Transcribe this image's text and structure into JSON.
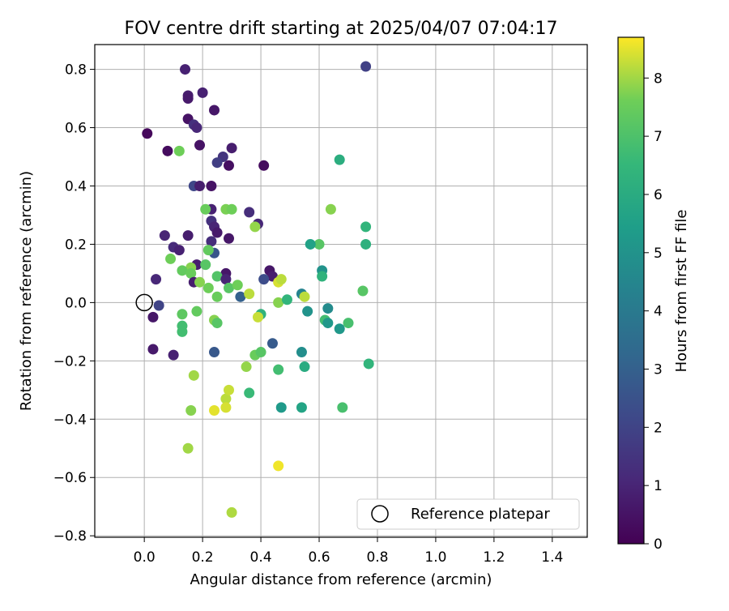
{
  "chart_data": {
    "type": "scatter",
    "title": "FOV centre drift starting at 2025/04/07 07:04:17",
    "xlabel": "Angular distance from reference (arcmin)",
    "ylabel": "Rotation from reference (arcmin)",
    "xlim": [
      -0.17,
      1.52
    ],
    "ylim": [
      -0.805,
      0.885
    ],
    "xticks": [
      0.0,
      0.2,
      0.4,
      0.6,
      0.8,
      1.0,
      1.2,
      1.4
    ],
    "xtick_labels": [
      "0.0",
      "0.2",
      "0.4",
      "0.6",
      "0.8",
      "1.0",
      "1.2",
      "1.4"
    ],
    "yticks": [
      -0.8,
      -0.6,
      -0.4,
      -0.2,
      0.0,
      0.2,
      0.4,
      0.6,
      0.8
    ],
    "ytick_labels": [
      "−0.8",
      "−0.6",
      "−0.4",
      "−0.2",
      "0.0",
      "0.2",
      "0.4",
      "0.6",
      "0.8"
    ],
    "grid": true,
    "colormap": "viridis",
    "colorbar": {
      "label": "Hours from first FF file",
      "range": [
        0,
        8.7
      ],
      "ticks": [
        0,
        1,
        2,
        3,
        4,
        5,
        6,
        7,
        8
      ],
      "tick_labels": [
        "0",
        "1",
        "2",
        "3",
        "4",
        "5",
        "6",
        "7",
        "8"
      ]
    },
    "legend": {
      "position": "lower-right",
      "entries": [
        "Reference platepar"
      ]
    },
    "reference_point": {
      "x": 0.0,
      "y": 0.0
    },
    "points": [
      [
        0.14,
        0.8,
        0.9
      ],
      [
        0.15,
        0.71,
        0.8
      ],
      [
        0.15,
        0.7,
        0.7
      ],
      [
        0.2,
        0.72,
        0.9
      ],
      [
        0.24,
        0.66,
        0.6
      ],
      [
        0.01,
        0.58,
        0.2
      ],
      [
        0.15,
        0.63,
        0.5
      ],
      [
        0.17,
        0.61,
        1.4
      ],
      [
        0.18,
        0.6,
        1.1
      ],
      [
        0.19,
        0.54,
        0.5
      ],
      [
        0.08,
        0.52,
        0.3
      ],
      [
        0.12,
        0.52,
        7.6
      ],
      [
        0.27,
        0.5,
        1.5
      ],
      [
        0.25,
        0.48,
        1.8
      ],
      [
        0.3,
        0.53,
        0.8
      ],
      [
        0.29,
        0.47,
        0.4
      ],
      [
        0.41,
        0.47,
        0.3
      ],
      [
        0.17,
        0.4,
        2.1
      ],
      [
        0.19,
        0.4,
        0.8
      ],
      [
        0.23,
        0.4,
        0.5
      ],
      [
        0.23,
        0.32,
        0.9
      ],
      [
        0.23,
        0.28,
        1.4
      ],
      [
        0.21,
        0.32,
        7.5
      ],
      [
        0.28,
        0.32,
        7.7
      ],
      [
        0.3,
        0.32,
        7.6
      ],
      [
        0.36,
        0.31,
        1.3
      ],
      [
        0.39,
        0.27,
        1.1
      ],
      [
        0.38,
        0.26,
        7.9
      ],
      [
        0.24,
        0.26,
        1.0
      ],
      [
        0.23,
        0.21,
        1.3
      ],
      [
        0.25,
        0.24,
        0.7
      ],
      [
        0.29,
        0.22,
        0.6
      ],
      [
        0.07,
        0.23,
        1.0
      ],
      [
        0.15,
        0.23,
        0.8
      ],
      [
        0.1,
        0.19,
        1.2
      ],
      [
        0.12,
        0.18,
        0.9
      ],
      [
        0.09,
        0.15,
        7.6
      ],
      [
        0.24,
        0.17,
        2.6
      ],
      [
        0.22,
        0.18,
        7.4
      ],
      [
        0.18,
        0.13,
        0.8
      ],
      [
        0.21,
        0.13,
        7.2
      ],
      [
        0.16,
        0.12,
        7.8
      ],
      [
        0.13,
        0.11,
        7.4
      ],
      [
        0.16,
        0.1,
        7.5
      ],
      [
        0.28,
        0.1,
        0.6
      ],
      [
        0.04,
        0.08,
        1.1
      ],
      [
        0.17,
        0.07,
        0.8
      ],
      [
        0.19,
        0.07,
        7.8
      ],
      [
        0.25,
        0.09,
        7.1
      ],
      [
        0.28,
        0.08,
        1.0
      ],
      [
        0.22,
        0.05,
        7.6
      ],
      [
        0.29,
        0.05,
        7.2
      ],
      [
        0.32,
        0.06,
        7.6
      ],
      [
        0.33,
        0.02,
        3.0
      ],
      [
        0.36,
        0.03,
        8.2
      ],
      [
        0.43,
        0.11,
        0.6
      ],
      [
        0.44,
        0.09,
        0.8
      ],
      [
        0.41,
        0.08,
        2.3
      ],
      [
        0.46,
        0.07,
        8.4
      ],
      [
        0.47,
        0.08,
        8.2
      ],
      [
        0.25,
        0.02,
        7.5
      ],
      [
        0.05,
        -0.01,
        2.0
      ],
      [
        0.03,
        -0.05,
        0.6
      ],
      [
        0.13,
        -0.04,
        7.3
      ],
      [
        0.13,
        -0.08,
        6.8
      ],
      [
        0.18,
        -0.03,
        7.4
      ],
      [
        0.24,
        -0.06,
        7.8
      ],
      [
        0.25,
        -0.07,
        7.2
      ],
      [
        0.13,
        -0.1,
        6.8
      ],
      [
        0.03,
        -0.16,
        0.7
      ],
      [
        0.1,
        -0.18,
        0.9
      ],
      [
        0.24,
        -0.17,
        2.7
      ],
      [
        0.38,
        -0.18,
        7.5
      ],
      [
        0.4,
        -0.17,
        7.2
      ],
      [
        0.44,
        -0.14,
        2.8
      ],
      [
        0.4,
        -0.04,
        6.3
      ],
      [
        0.39,
        -0.05,
        8.3
      ],
      [
        0.46,
        0.0,
        7.8
      ],
      [
        0.49,
        0.01,
        6.4
      ],
      [
        0.54,
        0.03,
        4.4
      ],
      [
        0.55,
        0.02,
        8.2
      ],
      [
        0.56,
        -0.03,
        5.0
      ],
      [
        0.61,
        0.11,
        5.0
      ],
      [
        0.61,
        0.09,
        6.3
      ],
      [
        0.6,
        0.2,
        7.2
      ],
      [
        0.57,
        0.2,
        5.6
      ],
      [
        0.63,
        -0.02,
        4.7
      ],
      [
        0.62,
        -0.06,
        6.8
      ],
      [
        0.63,
        -0.07,
        5.2
      ],
      [
        0.67,
        -0.09,
        5.2
      ],
      [
        0.7,
        -0.07,
        6.9
      ],
      [
        0.64,
        0.32,
        7.8
      ],
      [
        0.67,
        0.49,
        6.1
      ],
      [
        0.75,
        0.04,
        7.2
      ],
      [
        0.76,
        0.26,
        6.4
      ],
      [
        0.76,
        0.2,
        6.2
      ],
      [
        0.77,
        -0.21,
        6.4
      ],
      [
        0.35,
        -0.22,
        7.9
      ],
      [
        0.46,
        -0.23,
        6.8
      ],
      [
        0.55,
        -0.22,
        6.0
      ],
      [
        0.54,
        -0.17,
        4.8
      ],
      [
        0.36,
        -0.31,
        6.6
      ],
      [
        0.47,
        -0.36,
        5.3
      ],
      [
        0.54,
        -0.36,
        5.7
      ],
      [
        0.68,
        -0.36,
        6.9
      ],
      [
        0.17,
        -0.25,
        8.0
      ],
      [
        0.16,
        -0.37,
        7.8
      ],
      [
        0.28,
        -0.33,
        8.2
      ],
      [
        0.29,
        -0.3,
        8.3
      ],
      [
        0.28,
        -0.36,
        8.4
      ],
      [
        0.24,
        -0.37,
        8.5
      ],
      [
        0.15,
        -0.5,
        8.0
      ],
      [
        0.46,
        -0.56,
        8.6
      ],
      [
        0.3,
        -0.72,
        8.1
      ],
      [
        0.76,
        0.81,
        1.9
      ]
    ]
  }
}
